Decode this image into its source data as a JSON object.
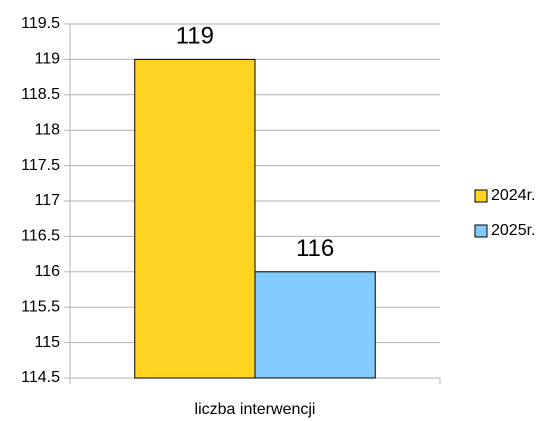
{
  "chart_data": {
    "type": "bar",
    "categories": [
      "liczba interwencji"
    ],
    "series": [
      {
        "name": "2024r.",
        "color": "#ffd320",
        "values": [
          119
        ]
      },
      {
        "name": "2025r.",
        "color": "#83caff",
        "values": [
          116
        ]
      }
    ],
    "ylim": [
      114.5,
      119.5
    ],
    "yticks": [
      114.5,
      115,
      115.5,
      116,
      116.5,
      117,
      117.5,
      118,
      118.5,
      119,
      119.5
    ],
    "grid": true,
    "legend": "right",
    "data_labels": true
  }
}
